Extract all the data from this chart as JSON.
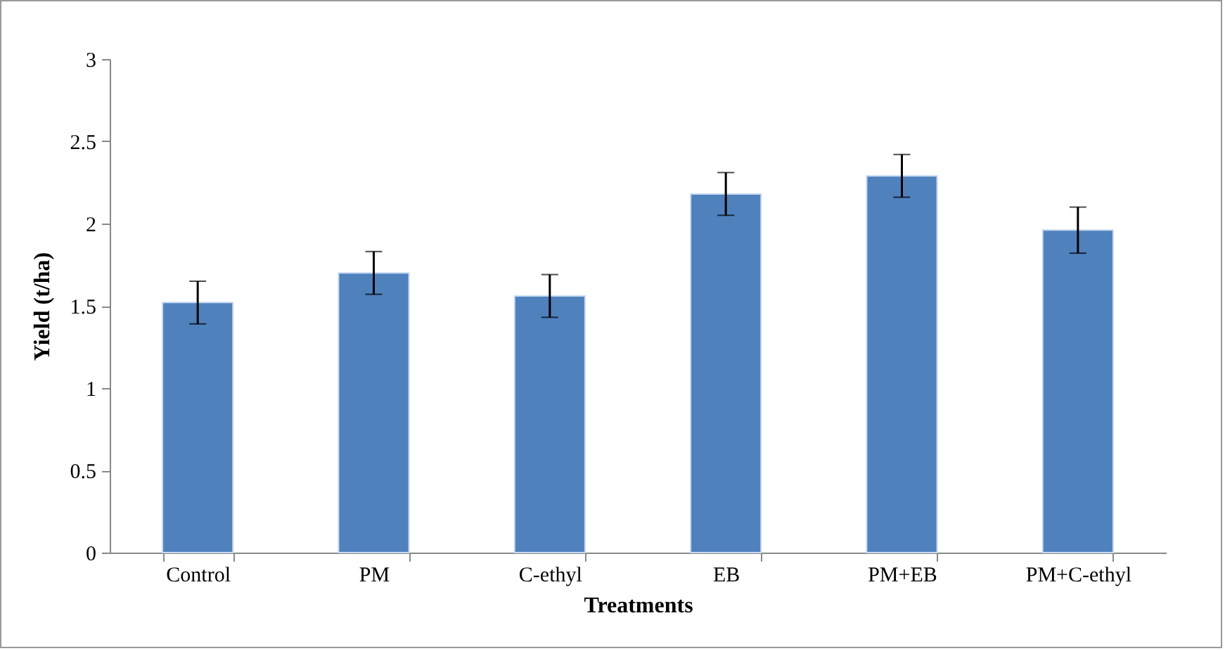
{
  "chart_data": {
    "type": "bar",
    "xlabel": "Treatments",
    "ylabel": "Yield (t/ha)",
    "categories": [
      "Control",
      "PM",
      "C-ethyl",
      "EB",
      "PM+EB",
      "PM+C-ethyl"
    ],
    "values": [
      1.52,
      1.7,
      1.56,
      2.18,
      2.29,
      1.96
    ],
    "errors": [
      0.13,
      0.13,
      0.13,
      0.13,
      0.13,
      0.14
    ],
    "color": "#4f81bd",
    "ylim": [
      0,
      3
    ],
    "yticks": [
      0,
      0.5,
      1,
      1.5,
      2,
      2.5,
      3
    ],
    "grid": false
  }
}
